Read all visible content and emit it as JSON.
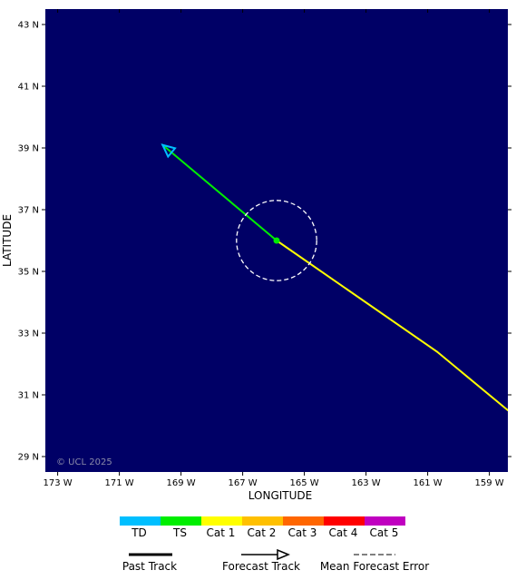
{
  "map": {
    "x_axis_title": "LONGITUDE",
    "y_axis_title": "LATITUDE",
    "copyright": "© UCL 2025",
    "background_color": "#000066",
    "lon_range": [
      -173.4,
      -158.4
    ],
    "lat_range": [
      28.5,
      43.5
    ],
    "lon_ticks": [
      {
        "value": -173,
        "label": "173 W"
      },
      {
        "value": -171,
        "label": "171 W"
      },
      {
        "value": -169,
        "label": "169 W"
      },
      {
        "value": -167,
        "label": "167 W"
      },
      {
        "value": -165,
        "label": "165 W"
      },
      {
        "value": -163,
        "label": "163 W"
      },
      {
        "value": -161,
        "label": "161 W"
      },
      {
        "value": -159,
        "label": "159 W"
      }
    ],
    "lat_ticks": [
      {
        "value": 43,
        "label": "43 N"
      },
      {
        "value": 41,
        "label": "41 N"
      },
      {
        "value": 39,
        "label": "39 N"
      },
      {
        "value": 37,
        "label": "37 N"
      },
      {
        "value": 35,
        "label": "35 N"
      },
      {
        "value": 33,
        "label": "33 N"
      },
      {
        "value": 31,
        "label": "31 N"
      },
      {
        "value": 29,
        "label": "29 N"
      }
    ]
  },
  "track": {
    "segments": [
      {
        "from": [
          -158.4,
          30.5
        ],
        "to": [
          -160.7,
          32.4
        ],
        "category": "Cat 1"
      },
      {
        "from": [
          -160.7,
          32.4
        ],
        "to": [
          -165.9,
          36.0
        ],
        "category": "Cat 1"
      },
      {
        "from": [
          -165.9,
          36.0
        ],
        "to": [
          -169.6,
          39.1
        ],
        "category": "TS"
      }
    ],
    "current_position": {
      "lon": -165.9,
      "lat": 36.0,
      "category": "TS"
    },
    "forecast_end_category": "TD",
    "forecast_error_radius_deg": 1.3
  },
  "legend": {
    "categories": [
      {
        "label": "TD",
        "color": "#00bfff"
      },
      {
        "label": "TS",
        "color": "#00ee00"
      },
      {
        "label": "Cat 1",
        "color": "#ffff00"
      },
      {
        "label": "Cat 2",
        "color": "#ffc000"
      },
      {
        "label": "Cat 3",
        "color": "#ff6600"
      },
      {
        "label": "Cat 4",
        "color": "#ff0000"
      },
      {
        "label": "Cat 5",
        "color": "#c000c0"
      }
    ],
    "keys": [
      {
        "label": "Past Track",
        "style": "solid-thick"
      },
      {
        "label": "Forecast Track",
        "style": "arrow"
      },
      {
        "label": "Mean Forecast Error",
        "style": "dashed"
      }
    ]
  }
}
